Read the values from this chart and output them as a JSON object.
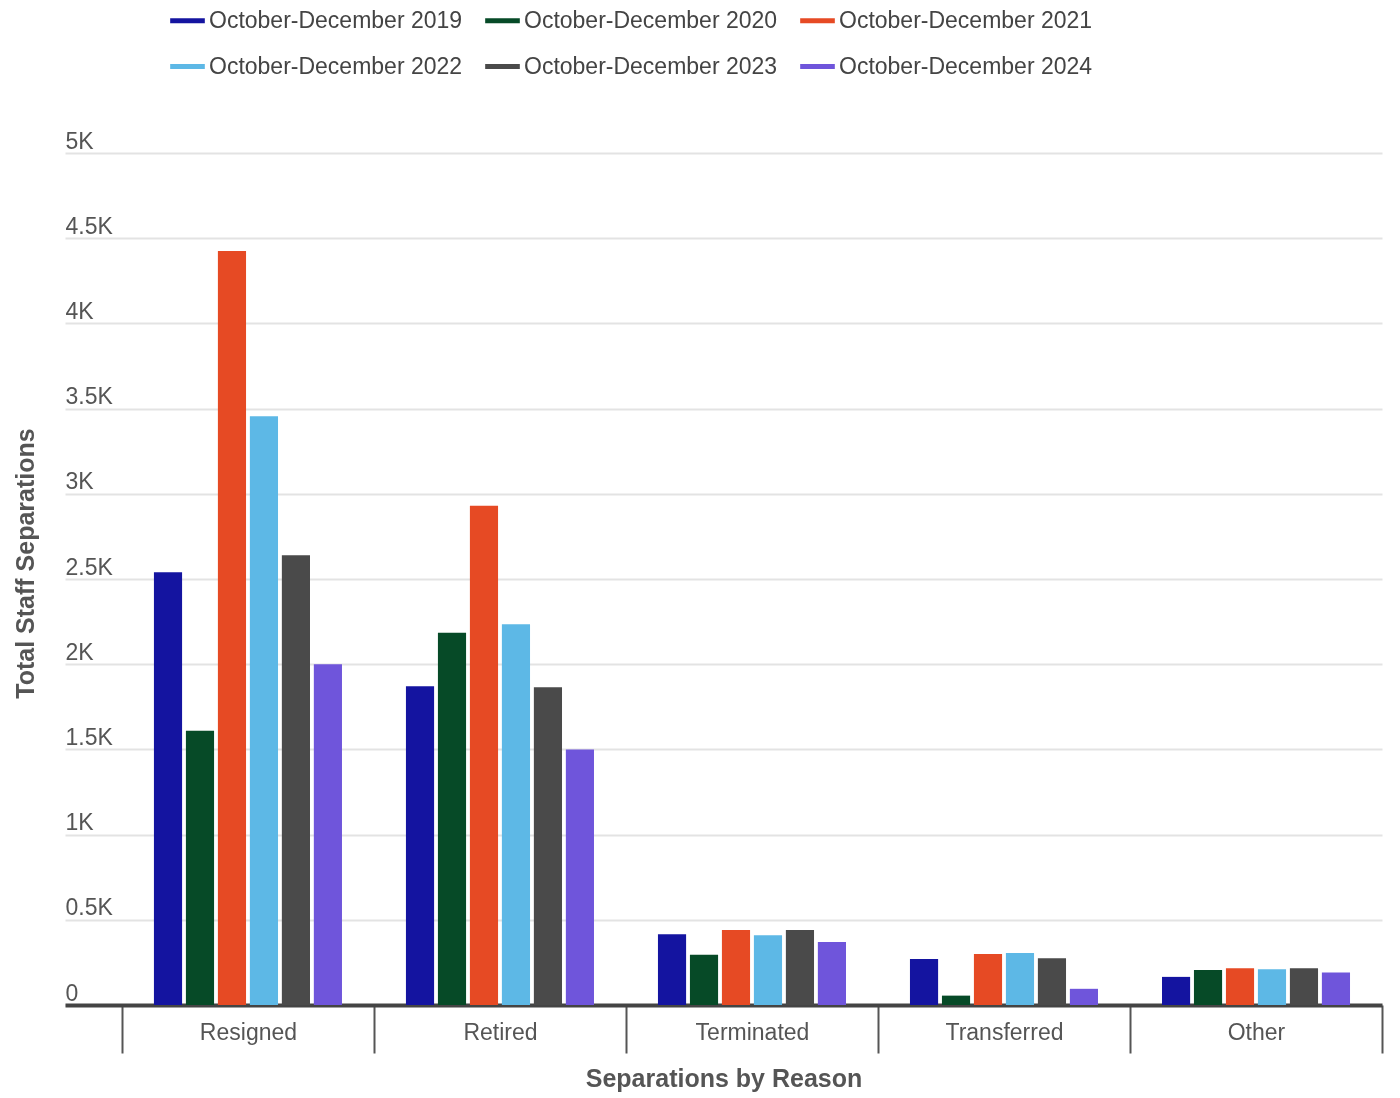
{
  "chart_data": {
    "type": "bar",
    "xlabel": "Separations by Reason",
    "ylabel": "Total Staff Separations",
    "categories": [
      "Resigned",
      "Retired",
      "Terminated",
      "Transferred",
      "Other"
    ],
    "series": [
      {
        "name": "October-December 2019",
        "color": "#1414a0",
        "values": [
          2540,
          1870,
          415,
          270,
          165
        ]
      },
      {
        "name": "October-December 2020",
        "color": "#064a27",
        "values": [
          1610,
          2185,
          295,
          55,
          205
        ]
      },
      {
        "name": "October-December 2021",
        "color": "#e64a24",
        "values": [
          4425,
          2930,
          440,
          300,
          215
        ]
      },
      {
        "name": "October-December 2022",
        "color": "#5db8e6",
        "values": [
          3455,
          2235,
          410,
          305,
          210
        ]
      },
      {
        "name": "October-December 2023",
        "color": "#4a4a4a",
        "values": [
          2640,
          1865,
          440,
          275,
          215
        ]
      },
      {
        "name": "October-December 2024",
        "color": "#6f55db",
        "values": [
          2000,
          1500,
          370,
          95,
          190
        ]
      }
    ],
    "ylim": [
      0,
      5000
    ],
    "yticks": [
      0,
      {
        "value": 500,
        "label": "0.5K"
      },
      {
        "value": 1000,
        "label": "1K"
      },
      {
        "value": 1500,
        "label": "1.5K"
      },
      {
        "value": 2000,
        "label": "2K"
      },
      {
        "value": 2500,
        "label": "2.5K"
      },
      {
        "value": 3000,
        "label": "3K"
      },
      {
        "value": 3500,
        "label": "3.5K"
      },
      {
        "value": 4000,
        "label": "4K"
      },
      {
        "value": 4500,
        "label": "4.5K"
      },
      {
        "value": 5000,
        "label": "5K"
      }
    ],
    "grid": "y",
    "legend": "top"
  }
}
